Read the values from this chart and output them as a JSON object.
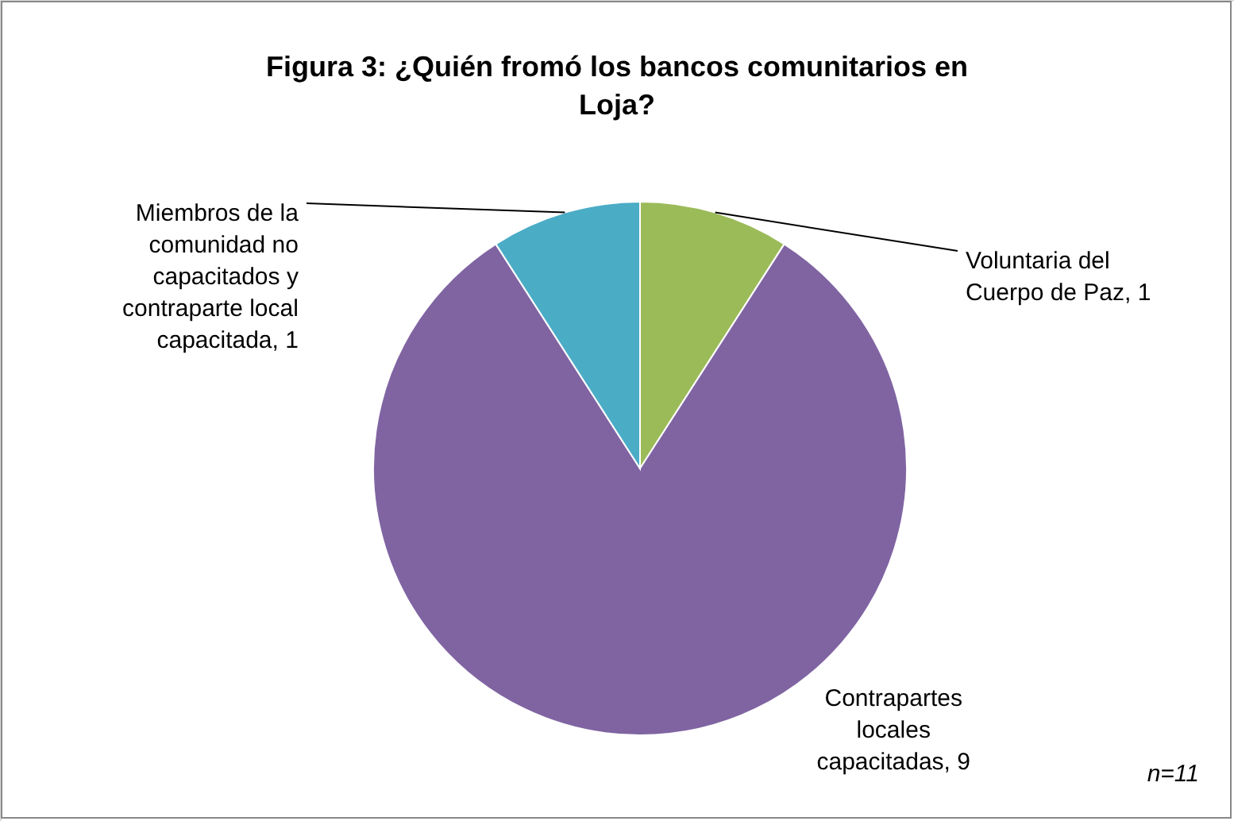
{
  "chart_data": {
    "type": "pie",
    "title": "Figura 3: ¿Quién fromó los bancos comunitarios en Loja?",
    "categories": [
      "Voluntaria del Cuerpo de Paz, 1",
      "Contrapartes locales capacitadas, 9",
      "Miembros de la comunidad no capacitados y contraparte local capacitada, 1"
    ],
    "values": [
      1,
      9,
      1
    ],
    "colors": [
      "#9bbb59",
      "#8064a2",
      "#4bacc6"
    ],
    "annotations": [
      "n=11"
    ]
  }
}
